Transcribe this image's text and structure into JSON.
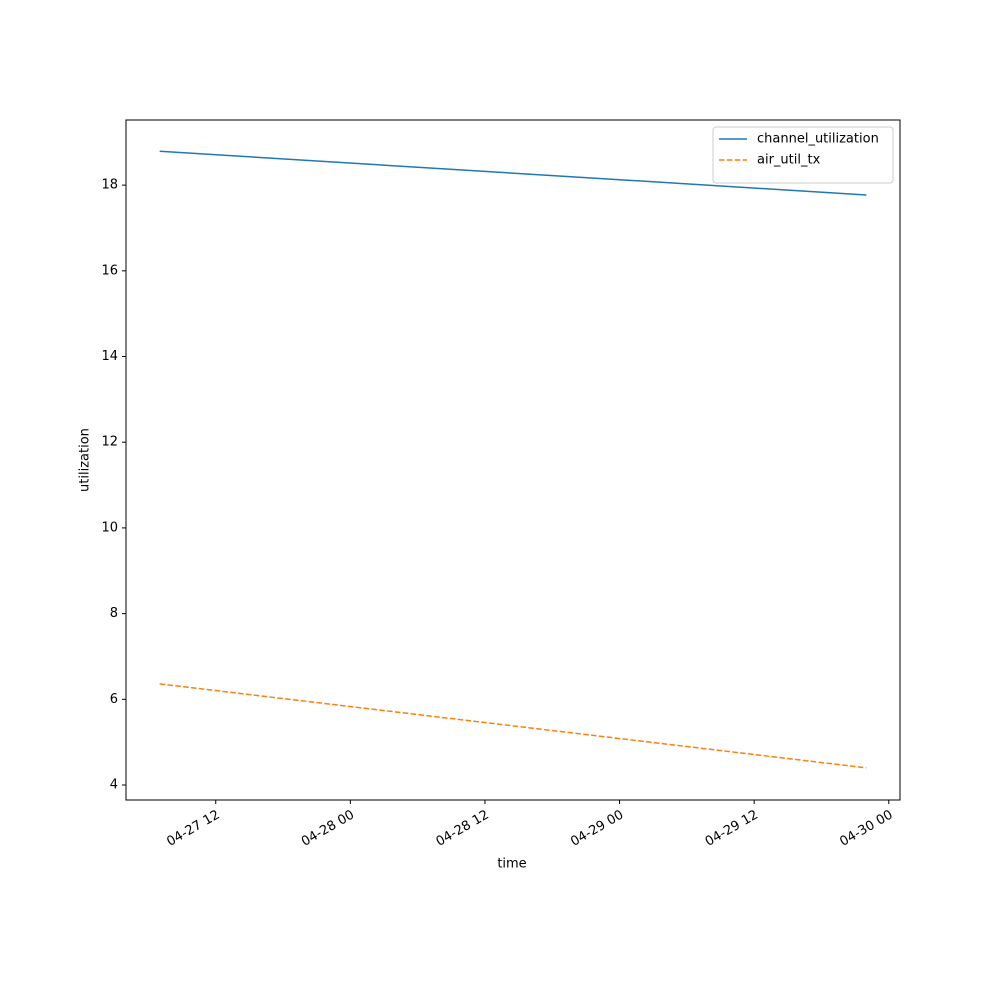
{
  "chart_data": {
    "type": "line",
    "x_label": "time",
    "y_label": "utilization",
    "x": [
      "04-27 07",
      "04-29 22"
    ],
    "series": [
      {
        "name": "channel_utilization",
        "color": "#1f77b4",
        "linestyle": "solid",
        "values": [
          18.79,
          17.77
        ]
      },
      {
        "name": "air_util_tx",
        "color": "#ff7f0e",
        "linestyle": "dashed",
        "values": [
          6.36,
          4.4
        ]
      }
    ],
    "xlim": [
      "04-27 04",
      "04-30 01"
    ],
    "xticks": [
      "04-27 12",
      "04-28 00",
      "04-28 12",
      "04-29 00",
      "04-29 12",
      "04-30 00"
    ],
    "ylim": [
      3.65,
      19.52
    ],
    "yticks": [
      4,
      6,
      8,
      10,
      12,
      14,
      16,
      18
    ],
    "grid": false,
    "legend": "upper right"
  }
}
